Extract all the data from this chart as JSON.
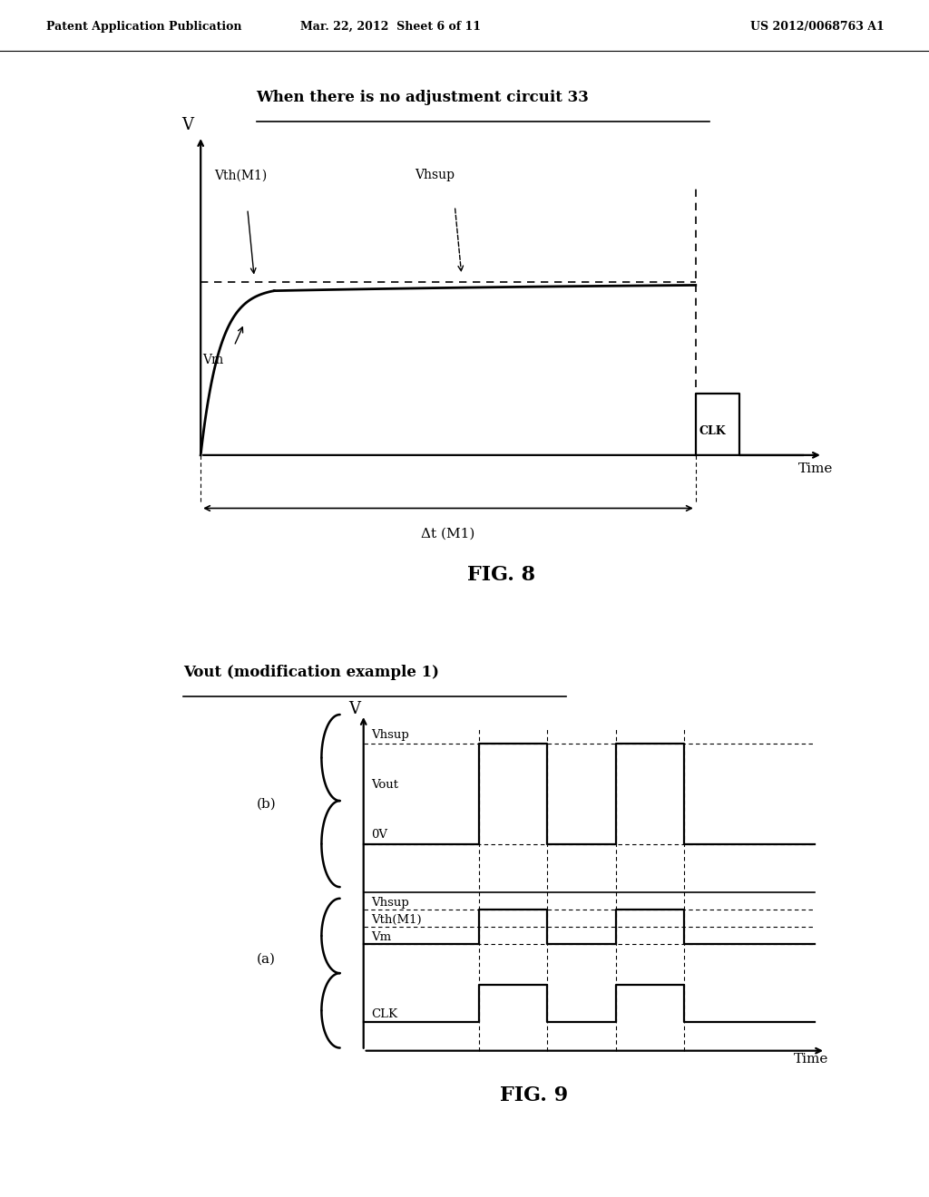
{
  "page_header_left": "Patent Application Publication",
  "page_header_mid": "Mar. 22, 2012  Sheet 6 of 11",
  "page_header_right": "US 2012/0068763 A1",
  "fig8_title": "When there is no adjustment circuit 33",
  "fig8_label": "FIG. 8",
  "fig9_title": "Vout (modification example 1)",
  "fig9_label": "FIG. 9",
  "bg_color": "#ffffff",
  "line_color": "#000000"
}
